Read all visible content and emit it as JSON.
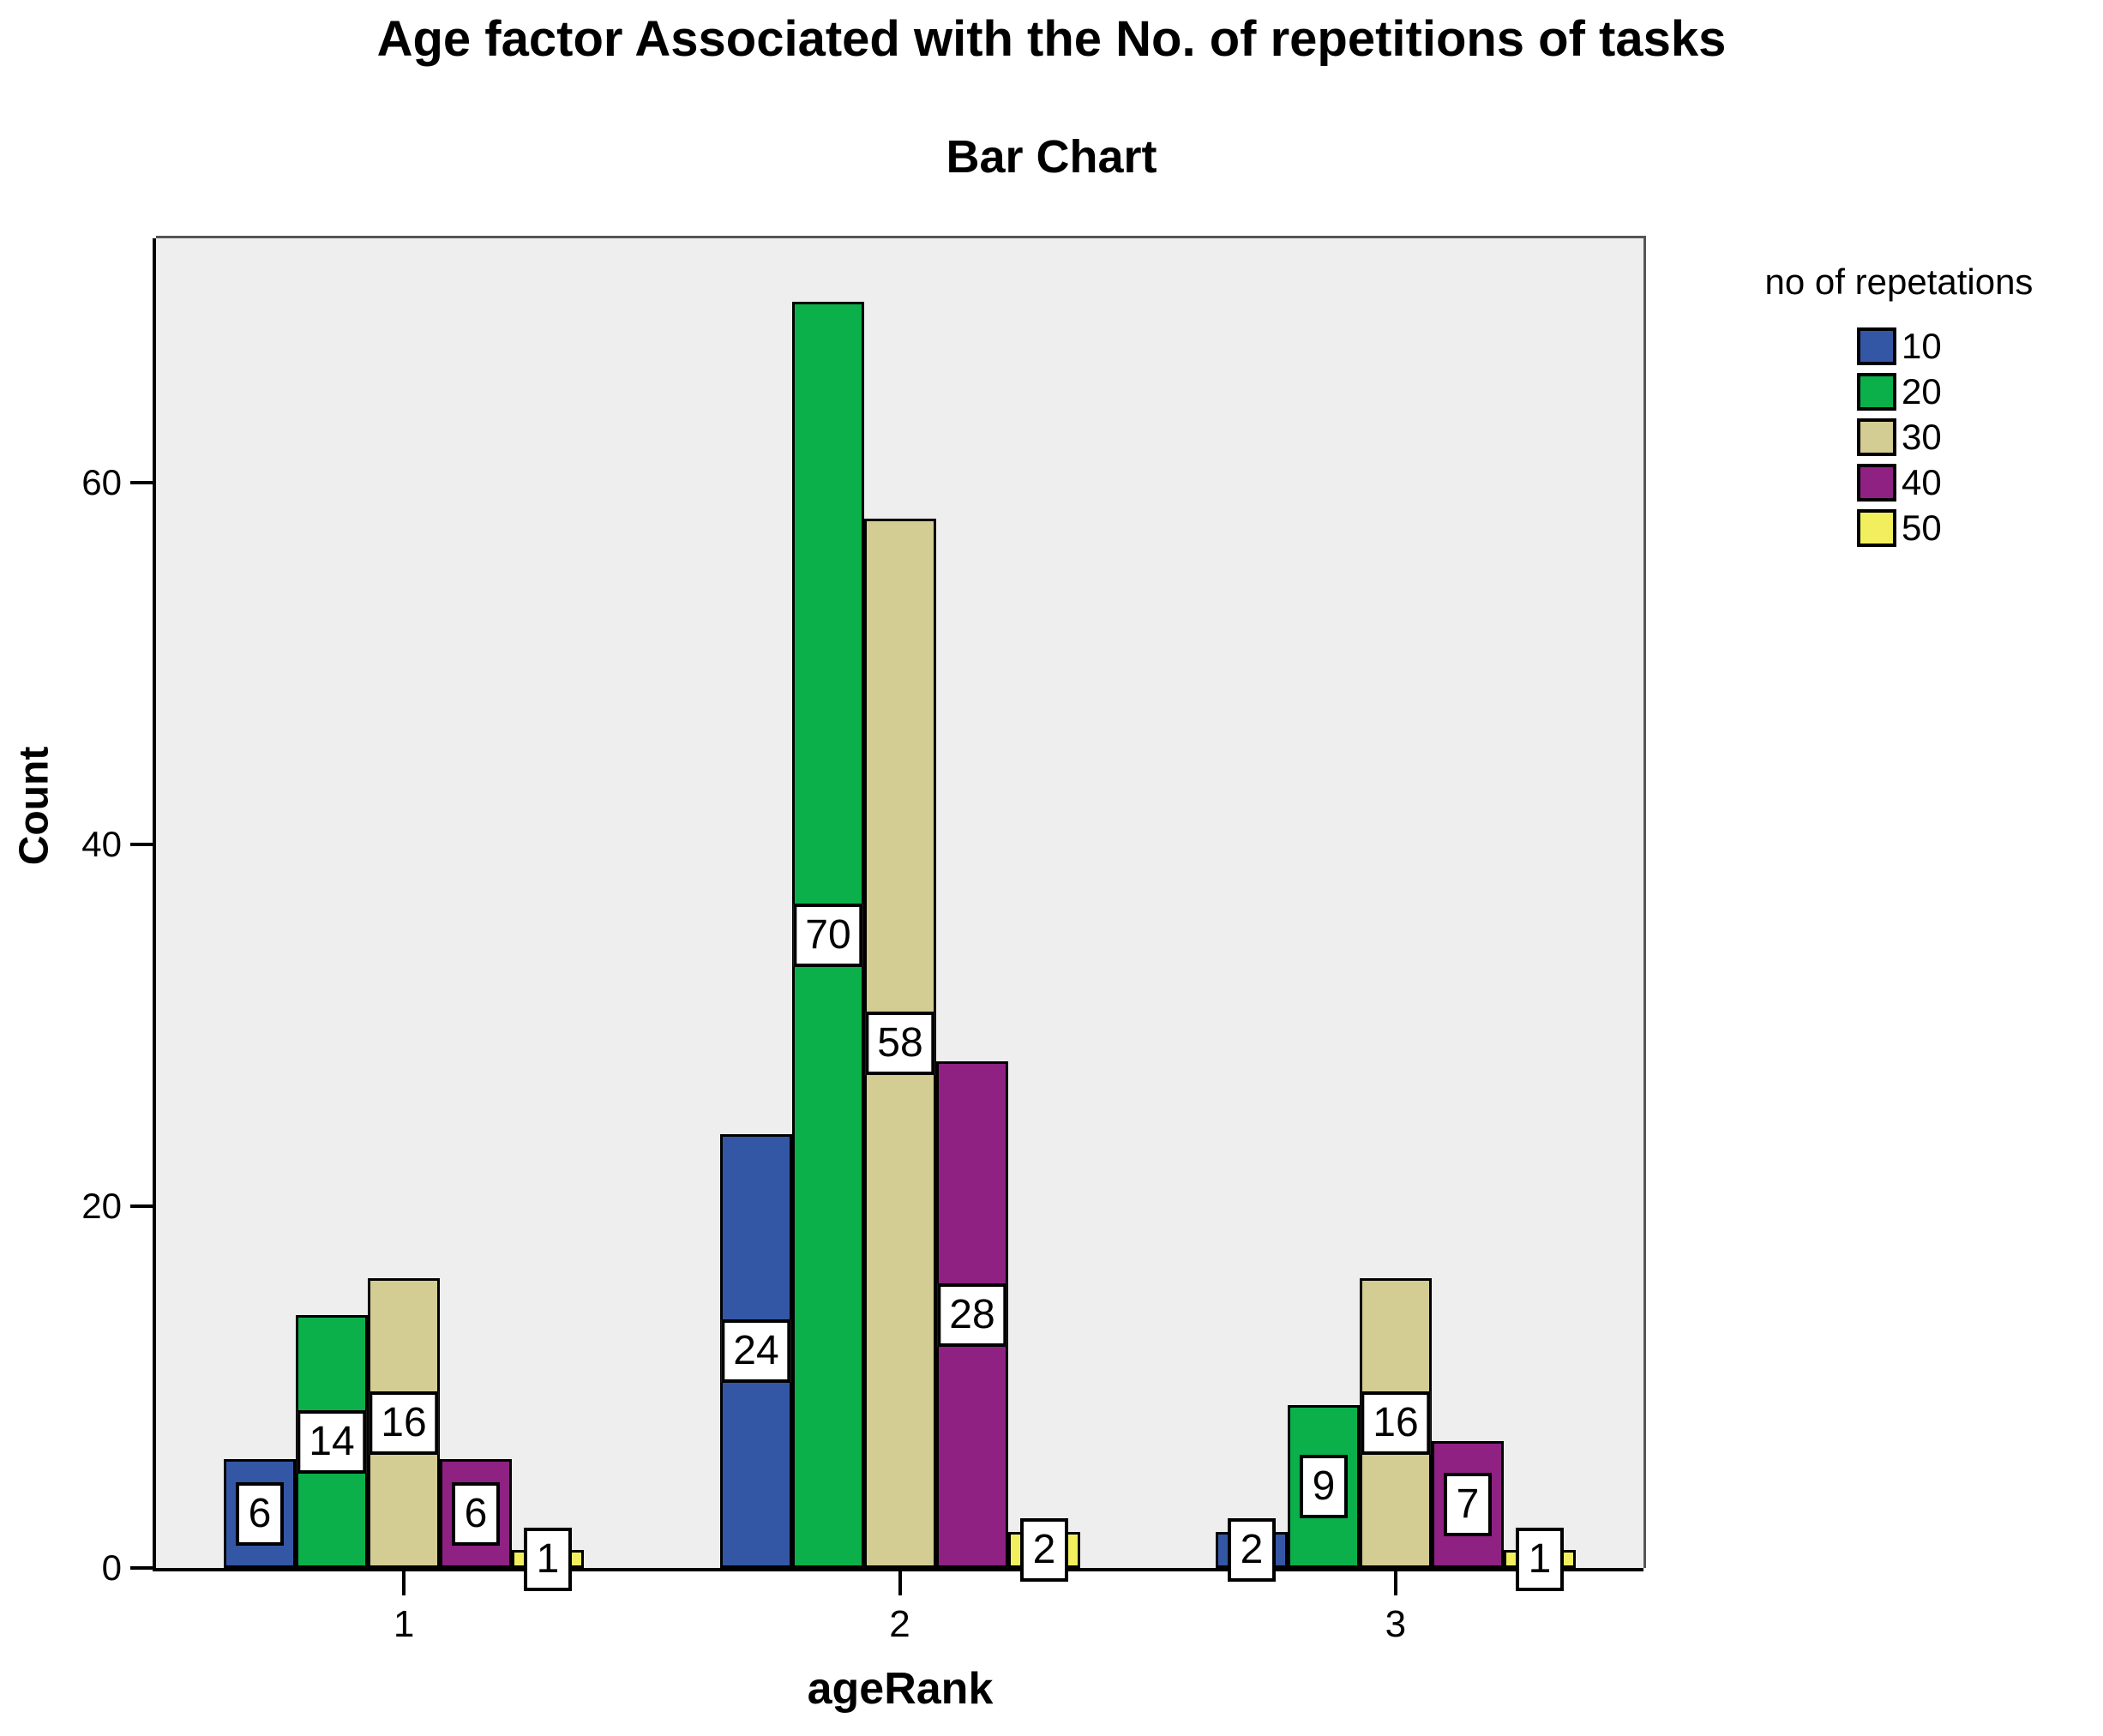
{
  "figure": {
    "title": "Age factor Associated with the No. of repetitions of tasks",
    "subtitle": "Bar Chart"
  },
  "chart_data": {
    "type": "bar",
    "title": "Age factor Associated with the No. of repetitions of tasks",
    "subtitle": "Bar Chart",
    "xlabel": "ageRank",
    "ylabel": "Count",
    "categories": [
      "1",
      "2",
      "3"
    ],
    "series": [
      {
        "name": "10",
        "color": "#3457a5",
        "values": [
          6,
          24,
          2
        ]
      },
      {
        "name": "20",
        "color": "#0bb04b",
        "values": [
          14,
          70,
          9
        ]
      },
      {
        "name": "30",
        "color": "#d3cc93",
        "values": [
          16,
          58,
          16
        ]
      },
      {
        "name": "40",
        "color": "#8f2182",
        "values": [
          6,
          28,
          7
        ]
      },
      {
        "name": "50",
        "color": "#f2ef5f",
        "values": [
          1,
          2,
          1
        ]
      }
    ],
    "bar_value_labels": [
      [
        6,
        24,
        2
      ],
      [
        14,
        70,
        9
      ],
      [
        16,
        58,
        16
      ],
      [
        6,
        28,
        7
      ],
      [
        1,
        2,
        1
      ]
    ],
    "yticks": [
      0,
      20,
      40,
      60
    ],
    "ylim": [
      0,
      73.5
    ],
    "grid": false,
    "legend_title": "no of repetations",
    "legend_position": "right",
    "plot_background": "#efeeee",
    "bar_labels_shown": true
  }
}
